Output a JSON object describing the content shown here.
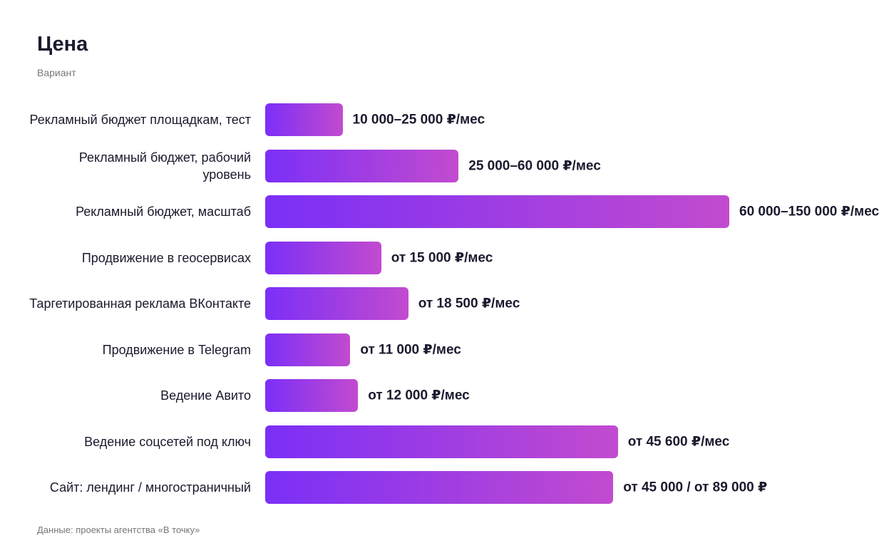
{
  "chart_data": {
    "type": "bar",
    "orientation": "horizontal",
    "title": "Цена",
    "subtitle": "Вариант",
    "categories": [
      "Рекламный бюджет площадкам, тест",
      "Рекламный бюджет, рабочий уровень",
      "Рекламный бюджет, масштаб",
      "Продвижение в геосервисах",
      "Таргетированная реклама ВКонтакте",
      "Продвижение в Telegram",
      "Ведение Авито",
      "Ведение соцсетей под ключ",
      "Сайт: лендинг / многостраничный"
    ],
    "values": [
      10000,
      25000,
      60000,
      15000,
      18500,
      11000,
      12000,
      45600,
      45000
    ],
    "value_labels": [
      "10 000–25 000 ₽/мес",
      "25 000–60 000 ₽/мес",
      "60 000–150 000 ₽/мес",
      "от 15 000 ₽/мес",
      "от 18 500 ₽/мес",
      "от 11 000 ₽/мес",
      "от 12 000 ₽/мес",
      "от 45 600 ₽/мес",
      "от 45 000 / от 89 000 ₽"
    ],
    "color": [
      "#7b2ff7",
      "#c24bcf"
    ],
    "xlim": [
      0,
      60000
    ],
    "source": "Данные: проекты агентства «В точку»"
  }
}
